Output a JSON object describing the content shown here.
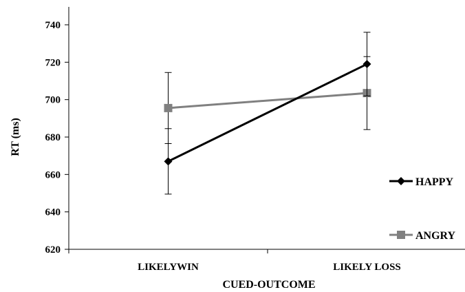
{
  "chart_data": {
    "type": "line",
    "title": "",
    "xlabel": "CUED-OUTCOME",
    "ylabel": "RT (ms)",
    "ylim": [
      620,
      740
    ],
    "yticks": [
      "620",
      "640",
      "660",
      "680",
      "700",
      "720",
      "740"
    ],
    "categories": [
      "LIKELYWIN",
      "LIKELY LOSS"
    ],
    "grid": false,
    "legend_position": "right",
    "series": [
      {
        "name": "HAPPY",
        "color": "#000000",
        "marker": "diamond",
        "values": [
          667,
          719
        ],
        "error_low": [
          649.5,
          702
        ],
        "error_high": [
          684.5,
          736
        ]
      },
      {
        "name": "ANGRY",
        "color": "#808080",
        "marker": "square",
        "values": [
          695.5,
          703.5
        ],
        "error_low": [
          676.5,
          684
        ],
        "error_high": [
          714.5,
          723
        ]
      }
    ]
  }
}
